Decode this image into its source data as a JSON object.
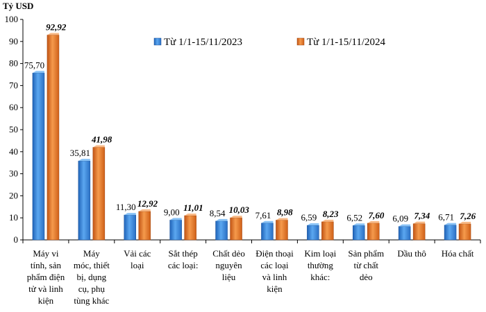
{
  "chart_data": {
    "type": "bar",
    "unit_label": "Tỷ USD",
    "ylim": [
      0,
      100
    ],
    "yticks": [
      0,
      10,
      20,
      30,
      40,
      50,
      60,
      70,
      80,
      90,
      100
    ],
    "grid": false,
    "legend_position": "top-right",
    "categories": [
      [
        "Máy vi",
        "tính, sản",
        "phẩm điện",
        "tử và linh",
        "kiện"
      ],
      [
        "Máy",
        "móc, thiết",
        "bị, dụng",
        "cụ, phụ",
        "tùng khác"
      ],
      [
        "Vải các",
        "loại"
      ],
      [
        "Sắt thép",
        "các loại:"
      ],
      [
        "Chất dẻo",
        "nguyên",
        "liệu"
      ],
      [
        "Điện thoại",
        "các loại",
        "và linh",
        "kiện"
      ],
      [
        "Kim loại",
        "thường",
        "khác:"
      ],
      [
        "Sản phẩm",
        "từ chất",
        "dẻo"
      ],
      [
        "Dầu thô"
      ],
      [
        "Hóa chất"
      ]
    ],
    "series": [
      {
        "name": "Từ 1/1-15/11/2023",
        "color": "#3E8EDE",
        "values": [
          75.7,
          35.81,
          11.3,
          9.0,
          8.54,
          7.61,
          6.59,
          6.52,
          6.09,
          6.71
        ],
        "labels": [
          "75,70",
          "35,81",
          "11,30",
          "9,00",
          "8,54",
          "7,61",
          "6,59",
          "6,52",
          "6,09",
          "6,71"
        ]
      },
      {
        "name": "Từ 1/1-15/11/2024",
        "color": "#E8782A",
        "values": [
          92.92,
          41.98,
          12.92,
          11.01,
          10.03,
          8.98,
          8.23,
          7.6,
          7.34,
          7.26
        ],
        "labels": [
          "92,92",
          "41,98",
          "12,92",
          "11,01",
          "10,03",
          "8,98",
          "8,23",
          "7,60",
          "7,34",
          "7,26"
        ]
      }
    ]
  }
}
